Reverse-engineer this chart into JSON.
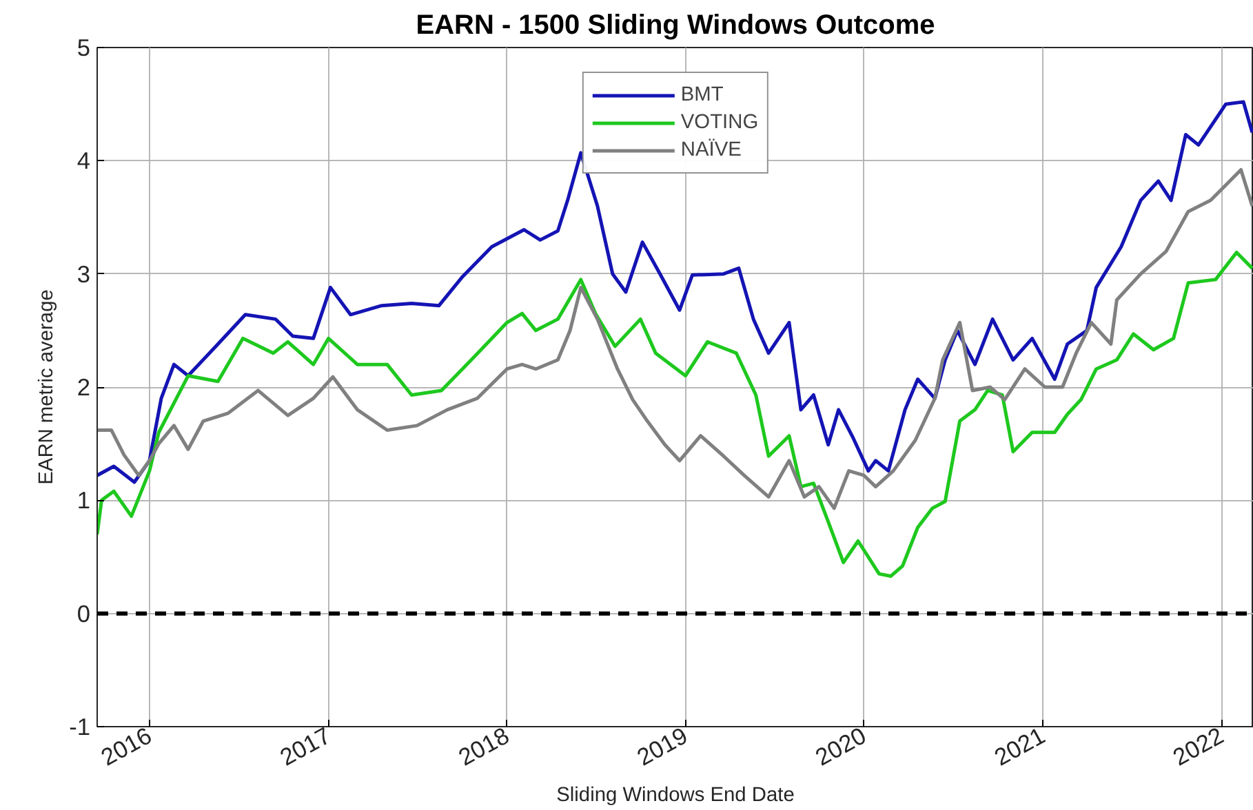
{
  "chart_data": {
    "type": "line",
    "title": "EARN - 1500 Sliding Windows Outcome",
    "xlabel": "Sliding Windows End Date",
    "ylabel": "EARN metric average",
    "xlim": [
      "2015-09-16",
      "2022-03-08"
    ],
    "ylim": [
      -1,
      5
    ],
    "xticks": [
      "2016",
      "2017",
      "2018",
      "2019",
      "2020",
      "2021",
      "2022"
    ],
    "yticks": [
      -1,
      0,
      1,
      2,
      3,
      4,
      5
    ],
    "grid": true,
    "legend": "top",
    "line_style": "solid",
    "ref_lines": [
      {
        "axis": "y",
        "value": 0,
        "color": "#000000",
        "line_style": "dashed"
      }
    ],
    "series": [
      {
        "name": "BMT",
        "color": "#1414b4",
        "x": [
          "2015-09-16",
          "2015-10-20",
          "2015-12-01",
          "2016-01-01",
          "2016-01-25",
          "2016-02-20",
          "2016-03-20",
          "2016-05-20",
          "2016-07-15",
          "2016-09-15",
          "2016-10-20",
          "2016-12-01",
          "2017-01-05",
          "2017-02-15",
          "2017-04-20",
          "2017-06-20",
          "2017-08-15",
          "2017-10-01",
          "2017-12-01",
          "2018-02-05",
          "2018-03-10",
          "2018-04-15",
          "2018-05-05",
          "2018-06-01",
          "2018-07-05",
          "2018-08-05",
          "2018-09-01",
          "2018-10-05",
          "2018-11-10",
          "2018-12-20",
          "2019-01-15",
          "2019-03-20",
          "2019-04-20",
          "2019-05-20",
          "2019-06-20",
          "2019-08-01",
          "2019-08-25",
          "2019-09-20",
          "2019-10-20",
          "2019-11-10",
          "2019-12-10",
          "2020-01-10",
          "2020-01-25",
          "2020-02-20",
          "2020-03-25",
          "2020-04-20",
          "2020-05-25",
          "2020-06-15",
          "2020-07-10",
          "2020-08-15",
          "2020-09-20",
          "2020-11-01",
          "2020-12-10",
          "2021-01-25",
          "2021-02-20",
          "2021-04-01",
          "2021-04-20",
          "2021-06-10",
          "2021-07-20",
          "2021-08-25",
          "2021-09-20",
          "2021-10-20",
          "2021-11-15",
          "2022-01-10",
          "2022-02-15",
          "2022-03-05"
        ],
        "values": [
          1.22,
          1.3,
          1.16,
          1.35,
          1.9,
          2.2,
          2.1,
          2.38,
          2.64,
          2.6,
          2.45,
          2.43,
          2.88,
          2.64,
          2.72,
          2.74,
          2.72,
          2.97,
          3.24,
          3.39,
          3.3,
          3.38,
          3.65,
          4.07,
          3.6,
          3.0,
          2.84,
          3.28,
          3.0,
          2.68,
          2.99,
          3.0,
          3.05,
          2.6,
          2.3,
          2.57,
          1.8,
          1.93,
          1.49,
          1.8,
          1.55,
          1.26,
          1.35,
          1.26,
          1.8,
          2.07,
          1.9,
          2.24,
          2.5,
          2.2,
          2.6,
          2.24,
          2.43,
          2.07,
          2.38,
          2.5,
          2.88,
          3.24,
          3.65,
          3.82,
          3.65,
          4.23,
          4.14,
          4.5,
          4.52,
          4.25
        ]
      },
      {
        "name": "VOTING",
        "color": "#1ec81e",
        "x": [
          "2015-09-16",
          "2015-09-25",
          "2015-10-20",
          "2015-11-25",
          "2016-01-01",
          "2016-01-20",
          "2016-02-25",
          "2016-03-20",
          "2016-05-20",
          "2016-07-10",
          "2016-09-10",
          "2016-10-10",
          "2016-12-01",
          "2017-01-01",
          "2017-03-01",
          "2017-05-01",
          "2017-06-20",
          "2017-08-20",
          "2017-10-20",
          "2018-01-01",
          "2018-02-01",
          "2018-03-01",
          "2018-04-15",
          "2018-06-01",
          "2018-07-01",
          "2018-08-10",
          "2018-10-01",
          "2018-11-01",
          "2019-01-01",
          "2019-02-15",
          "2019-04-15",
          "2019-05-25",
          "2019-06-20",
          "2019-08-01",
          "2019-08-25",
          "2019-09-20",
          "2019-10-20",
          "2019-11-20",
          "2019-12-20",
          "2020-02-01",
          "2020-02-25",
          "2020-03-20",
          "2020-04-20",
          "2020-05-20",
          "2020-06-15",
          "2020-07-15",
          "2020-08-15",
          "2020-09-10",
          "2020-10-10",
          "2020-11-01",
          "2020-12-10",
          "2021-01-25",
          "2021-02-20",
          "2021-03-20",
          "2021-04-20",
          "2021-06-01",
          "2021-07-05",
          "2021-08-15",
          "2021-09-25",
          "2021-10-25",
          "2021-12-20",
          "2022-02-01",
          "2022-03-05"
        ],
        "values": [
          0.7,
          1.0,
          1.08,
          0.86,
          1.26,
          1.6,
          1.9,
          2.1,
          2.05,
          2.43,
          2.3,
          2.4,
          2.2,
          2.43,
          2.2,
          2.2,
          1.93,
          1.97,
          2.24,
          2.57,
          2.65,
          2.5,
          2.6,
          2.95,
          2.65,
          2.36,
          2.6,
          2.3,
          2.1,
          2.4,
          2.3,
          1.93,
          1.39,
          1.57,
          1.12,
          1.15,
          0.81,
          0.45,
          0.64,
          0.35,
          0.33,
          0.42,
          0.76,
          0.93,
          0.99,
          1.7,
          1.8,
          1.97,
          1.93,
          1.43,
          1.6,
          1.6,
          1.76,
          1.89,
          2.16,
          2.24,
          2.47,
          2.33,
          2.43,
          2.92,
          2.95,
          3.19,
          3.05
        ]
      },
      {
        "name": "NAÏVE",
        "color": "#808080",
        "x": [
          "2015-09-16",
          "2015-10-15",
          "2015-11-10",
          "2015-12-10",
          "2016-01-01",
          "2016-01-20",
          "2016-02-20",
          "2016-03-20",
          "2016-04-20",
          "2016-06-10",
          "2016-08-10",
          "2016-10-10",
          "2016-12-01",
          "2017-01-10",
          "2017-03-01",
          "2017-05-01",
          "2017-07-01",
          "2017-09-01",
          "2017-11-01",
          "2018-01-01",
          "2018-02-01",
          "2018-03-01",
          "2018-04-15",
          "2018-05-10",
          "2018-06-01",
          "2018-07-05",
          "2018-08-15",
          "2018-09-15",
          "2018-10-15",
          "2018-11-20",
          "2018-12-20",
          "2019-02-01",
          "2019-03-20",
          "2019-05-01",
          "2019-06-20",
          "2019-08-01",
          "2019-09-01",
          "2019-10-01",
          "2019-11-01",
          "2019-12-01",
          "2020-01-01",
          "2020-01-25",
          "2020-03-01",
          "2020-04-15",
          "2020-05-25",
          "2020-06-10",
          "2020-07-15",
          "2020-08-10",
          "2020-09-15",
          "2020-10-15",
          "2020-11-25",
          "2021-01-05",
          "2021-02-10",
          "2021-03-10",
          "2021-04-10",
          "2021-05-20",
          "2021-06-01",
          "2021-07-20",
          "2021-09-10",
          "2021-10-25",
          "2021-12-10",
          "2022-02-10",
          "2022-03-05"
        ],
        "values": [
          1.62,
          1.62,
          1.4,
          1.22,
          1.35,
          1.5,
          1.66,
          1.45,
          1.7,
          1.77,
          1.97,
          1.75,
          1.9,
          2.09,
          1.8,
          1.62,
          1.66,
          1.8,
          1.9,
          2.16,
          2.2,
          2.16,
          2.24,
          2.5,
          2.88,
          2.6,
          2.16,
          1.89,
          1.7,
          1.49,
          1.35,
          1.57,
          1.39,
          1.22,
          1.03,
          1.35,
          1.03,
          1.12,
          0.93,
          1.26,
          1.22,
          1.12,
          1.26,
          1.53,
          1.9,
          2.24,
          2.57,
          1.97,
          2.0,
          1.89,
          2.16,
          2.0,
          2.0,
          2.3,
          2.57,
          2.38,
          2.77,
          3.0,
          3.2,
          3.55,
          3.65,
          3.92,
          3.6
        ]
      }
    ]
  }
}
